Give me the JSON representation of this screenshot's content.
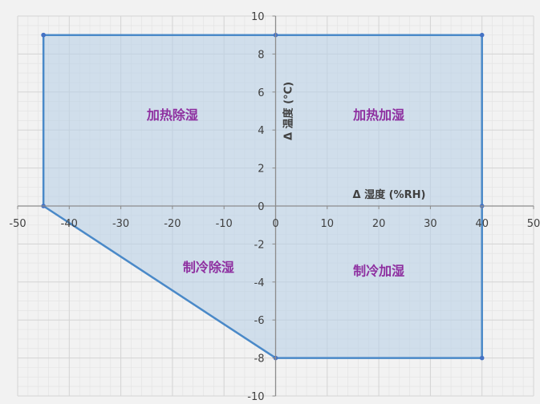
{
  "chart_data": {
    "type": "area",
    "title": "",
    "xlabel": "Δ 湿度 (%RH)",
    "ylabel": "Δ 温度 (°C)",
    "xlim": [
      -50,
      50
    ],
    "ylim": [
      -10,
      10
    ],
    "x_major_step": 10,
    "y_major_step": 2,
    "x_minor_step": 2,
    "y_minor_step": 0.5,
    "grid": true,
    "legend": "none",
    "x_tick_labels": [
      "-50",
      "-40",
      "-30",
      "-20",
      "-10",
      "0",
      "10",
      "20",
      "30",
      "40",
      "50"
    ],
    "y_tick_labels": [
      "-10",
      "-8",
      "-6",
      "-4",
      "-2",
      "0",
      "2",
      "4",
      "6",
      "8",
      "10"
    ],
    "series": [
      {
        "points": [
          {
            "x": -45,
            "y": 9
          },
          {
            "x": 0,
            "y": 9
          },
          {
            "x": 40,
            "y": 9
          },
          {
            "x": 40,
            "y": 0
          },
          {
            "x": 40,
            "y": -8
          },
          {
            "x": 0,
            "y": -8
          },
          {
            "x": -45,
            "y": 0
          },
          {
            "x": -45,
            "y": 9
          }
        ],
        "line_color": "#4a89c8",
        "fill_color": "#b9d0e6",
        "fill_opacity": 0.6,
        "marker_color": "#4472c4"
      }
    ],
    "annotations": [
      {
        "text": "加热除湿",
        "x": -20,
        "y": 4.8
      },
      {
        "text": "加热加湿",
        "x": 20,
        "y": 4.8
      },
      {
        "text": "制冷除湿",
        "x": -13,
        "y": -3.2
      },
      {
        "text": "制冷加湿",
        "x": 20,
        "y": -3.4
      }
    ],
    "colors": {
      "background": "#f2f2f2",
      "major_grid": "#d4d4d4",
      "minor_grid": "#e4e4e4",
      "axis": "#8c8c8c",
      "annotation": "#8e2fa0"
    }
  }
}
